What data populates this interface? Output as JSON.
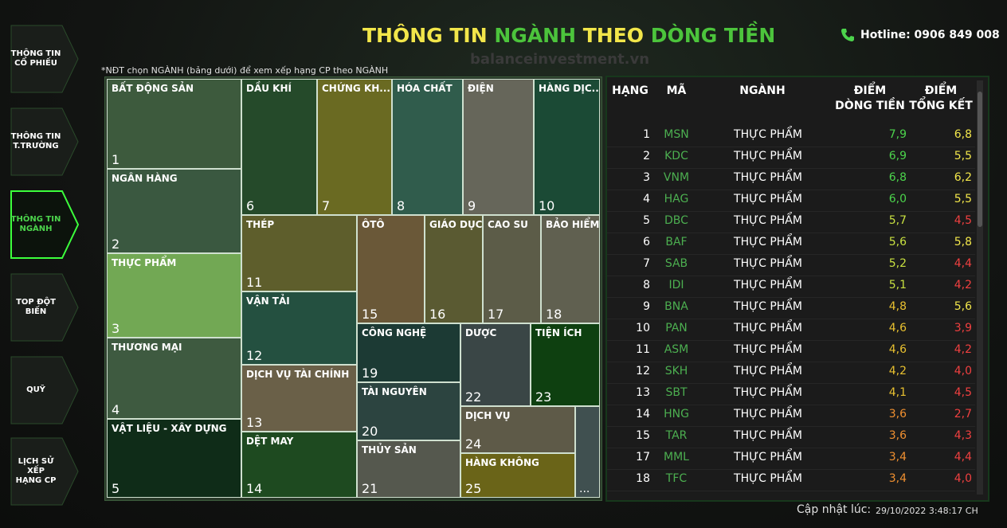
{
  "nav": [
    {
      "lines": [
        "THÔNG TIN",
        "CỔ PHIẾU"
      ],
      "active": false
    },
    {
      "lines": [
        "THÔNG TIN",
        "T.TRƯỜNG"
      ],
      "active": false
    },
    {
      "lines": [
        "THÔNG TIN",
        "NGÀNH"
      ],
      "active": true
    },
    {
      "lines": [
        "TOP ĐỘT",
        "BIẾN"
      ],
      "active": false
    },
    {
      "lines": [
        "QUỸ"
      ],
      "active": false
    },
    {
      "lines": [
        "LỊCH SỬ XẾP",
        "HẠNG CP"
      ],
      "active": false
    }
  ],
  "header": {
    "title": [
      {
        "text": "THÔNG TIN",
        "color": "#f2e64a"
      },
      {
        "text": "NGÀNH",
        "color": "#4cc43c"
      },
      {
        "text": "THEO",
        "color": "#f2e64a"
      },
      {
        "text": "DÒNG TIỀN",
        "color": "#4cc43c"
      }
    ],
    "hotline": "Hotline: 0906 849 008",
    "watermark": "balanceinvestment.vn"
  },
  "note": "*NĐT chọn NGÀNH (bảng dưới) để xem xếp hạng CP theo NGÀNH",
  "treemap": {
    "tiles": [
      {
        "label": "BẤT ĐỘNG SẢN",
        "rank": 1,
        "color": "#3d5a3d"
      },
      {
        "label": "NGÂN HÀNG",
        "rank": 2,
        "color": "#3a5840"
      },
      {
        "label": "THỰC PHẨM",
        "rank": 3,
        "color": "#72a854"
      },
      {
        "label": "THƯƠNG MẠI",
        "rank": 4,
        "color": "#3e5a40"
      },
      {
        "label": "VẬT LIỆU - XÂY DỰNG",
        "rank": 5,
        "color": "#0f2c18"
      },
      {
        "label": "DẦU KHÍ",
        "rank": 6,
        "color": "#254a2a"
      },
      {
        "label": "CHỨNG KH...",
        "rank": 7,
        "color": "#6a6a22"
      },
      {
        "label": "HÓA CHẤT",
        "rank": 8,
        "color": "#305c4c"
      },
      {
        "label": "ĐIỆN",
        "rank": 9,
        "color": "#66665a"
      },
      {
        "label": "HÀNG DỊC...",
        "rank": 10,
        "color": "#1b4a35"
      },
      {
        "label": "THÉP",
        "rank": 11,
        "color": "#5e5e2c"
      },
      {
        "label": "VẬN TẢI",
        "rank": 12,
        "color": "#245040"
      },
      {
        "label": "DỊCH VỤ TÀI CHÍNH",
        "rank": 13,
        "color": "#6a6048"
      },
      {
        "label": "DỆT MAY",
        "rank": 14,
        "color": "#1e4a20"
      },
      {
        "label": "ÔTÔ",
        "rank": 15,
        "color": "#6a5838"
      },
      {
        "label": "GIÁO DỤC",
        "rank": 16,
        "color": "#5a5a32"
      },
      {
        "label": "CAO SU",
        "rank": 17,
        "color": "#5c5c48"
      },
      {
        "label": "BẢO HIỂM",
        "rank": 18,
        "color": "#606050"
      },
      {
        "label": "CÔNG NGHỆ",
        "rank": 19,
        "color": "#1c3a34"
      },
      {
        "label": "TÀI NGUYÊN",
        "rank": 20,
        "color": "#2c4440"
      },
      {
        "label": "THỦY SẢN",
        "rank": 21,
        "color": "#55584e"
      },
      {
        "label": "DƯỢC",
        "rank": 22,
        "color": "#3a4646"
      },
      {
        "label": "TIỆN ÍCH",
        "rank": 23,
        "color": "#0e4010"
      },
      {
        "label": "DỊCH VỤ",
        "rank": 24,
        "color": "#5e5a48"
      },
      {
        "label": "HÀNG KHÔNG",
        "rank": 25,
        "color": "#6a6418"
      }
    ],
    "more": "...",
    "more_color": "#405050"
  },
  "table": {
    "columns": [
      [
        "HẠNG"
      ],
      [
        "MÃ"
      ],
      [
        "NGÀNH"
      ],
      [
        "ĐIỂM",
        "DÒNG TIỀN"
      ],
      [
        "ĐIỂM",
        "TỔNG KẾT"
      ]
    ],
    "rows": [
      {
        "rank": 1,
        "code": "MSN",
        "sector": "THỰC PHẨM",
        "flow": "7,9",
        "flow_color": "#4cd44c",
        "total": "6,8",
        "total_color": "#f2e64a"
      },
      {
        "rank": 2,
        "code": "KDC",
        "sector": "THỰC PHẨM",
        "flow": "6,9",
        "flow_color": "#4cd44c",
        "total": "5,5",
        "total_color": "#f2e64a"
      },
      {
        "rank": 3,
        "code": "VNM",
        "sector": "THỰC PHẨM",
        "flow": "6,8",
        "flow_color": "#4cd44c",
        "total": "6,2",
        "total_color": "#f2e64a"
      },
      {
        "rank": 4,
        "code": "HAG",
        "sector": "THỰC PHẨM",
        "flow": "6,0",
        "flow_color": "#4cd44c",
        "total": "5,5",
        "total_color": "#f2e64a"
      },
      {
        "rank": 5,
        "code": "DBC",
        "sector": "THỰC PHẨM",
        "flow": "5,7",
        "flow_color": "#c8e040",
        "total": "4,5",
        "total_color": "#f04040"
      },
      {
        "rank": 6,
        "code": "BAF",
        "sector": "THỰC PHẨM",
        "flow": "5,6",
        "flow_color": "#c8e040",
        "total": "5,8",
        "total_color": "#f2e64a"
      },
      {
        "rank": 7,
        "code": "SAB",
        "sector": "THỰC PHẨM",
        "flow": "5,2",
        "flow_color": "#c8e040",
        "total": "4,4",
        "total_color": "#f04040"
      },
      {
        "rank": 8,
        "code": "IDI",
        "sector": "THỰC PHẨM",
        "flow": "5,1",
        "flow_color": "#c8e040",
        "total": "4,2",
        "total_color": "#f04040"
      },
      {
        "rank": 9,
        "code": "BNA",
        "sector": "THỰC PHẨM",
        "flow": "4,8",
        "flow_color": "#e8c030",
        "total": "5,6",
        "total_color": "#f2e64a"
      },
      {
        "rank": 10,
        "code": "PAN",
        "sector": "THỰC PHẨM",
        "flow": "4,6",
        "flow_color": "#e8c030",
        "total": "3,9",
        "total_color": "#f04040"
      },
      {
        "rank": 11,
        "code": "ASM",
        "sector": "THỰC PHẨM",
        "flow": "4,6",
        "flow_color": "#e8c030",
        "total": "4,2",
        "total_color": "#f04040"
      },
      {
        "rank": 12,
        "code": "SKH",
        "sector": "THỰC PHẨM",
        "flow": "4,2",
        "flow_color": "#e8c030",
        "total": "4,0",
        "total_color": "#f04040"
      },
      {
        "rank": 13,
        "code": "SBT",
        "sector": "THỰC PHẨM",
        "flow": "4,1",
        "flow_color": "#e8c030",
        "total": "4,5",
        "total_color": "#f04040"
      },
      {
        "rank": 14,
        "code": "HNG",
        "sector": "THỰC PHẨM",
        "flow": "3,6",
        "flow_color": "#f09030",
        "total": "2,7",
        "total_color": "#f04040"
      },
      {
        "rank": 15,
        "code": "TAR",
        "sector": "THỰC PHẨM",
        "flow": "3,6",
        "flow_color": "#f09030",
        "total": "4,3",
        "total_color": "#f04040"
      },
      {
        "rank": 17,
        "code": "MML",
        "sector": "THỰC PHẨM",
        "flow": "3,4",
        "flow_color": "#f09030",
        "total": "4,4",
        "total_color": "#f04040"
      },
      {
        "rank": 18,
        "code": "TFC",
        "sector": "THỰC PHẨM",
        "flow": "3,4",
        "flow_color": "#f09030",
        "total": "4,0",
        "total_color": "#f04040"
      }
    ]
  },
  "footer": {
    "label": "Cập nhật lúc:",
    "time": "29/10/2022 3:48:17 CH"
  }
}
